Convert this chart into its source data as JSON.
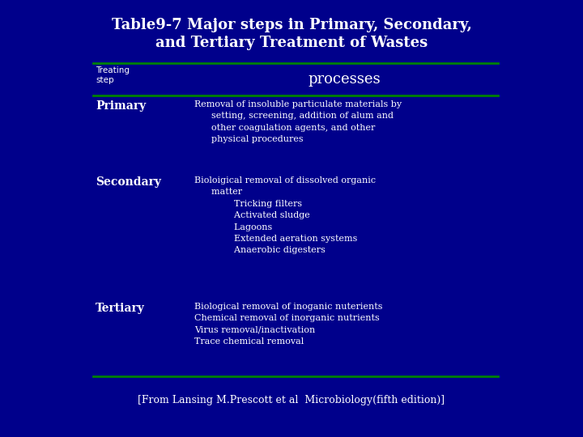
{
  "title_line1": "Table9-7 Major steps in Primary, Secondary,",
  "title_line2": "and Tertiary Treatment of Wastes",
  "bg_color": "#00008B",
  "text_color": "#FFFFFF",
  "line_color": "#008000",
  "header_col1": "Treating\nstep",
  "header_col2": "processes",
  "rows": [
    {
      "col1": "Primary",
      "col2": "Removal of insoluble particulate materials by\n      setting, screening, addition of alum and\n      other coagulation agents, and other\n      physical procedures"
    },
    {
      "col1": "Secondary",
      "col2": "Bioloigical removal of dissolved organic\n      matter\n              Tricking filters\n              Activated sludge\n              Lagoons\n              Extended aeration systems\n              Anaerobic digesters"
    },
    {
      "col1": "Tertiary",
      "col2": "Biological removal of inoganic nuterients\nChemical removal of inorganic nutrients\nVirus removal/inactivation\nTrace chemical removal"
    }
  ],
  "footer": "[From Lansing M.Prescott et al  Microbiology(fifth edition)]",
  "title_fontsize": 13,
  "processes_fontsize": 13,
  "col1_fontsize": 10,
  "col2_fontsize": 8,
  "treating_fontsize": 7.5,
  "footer_fontsize": 9
}
